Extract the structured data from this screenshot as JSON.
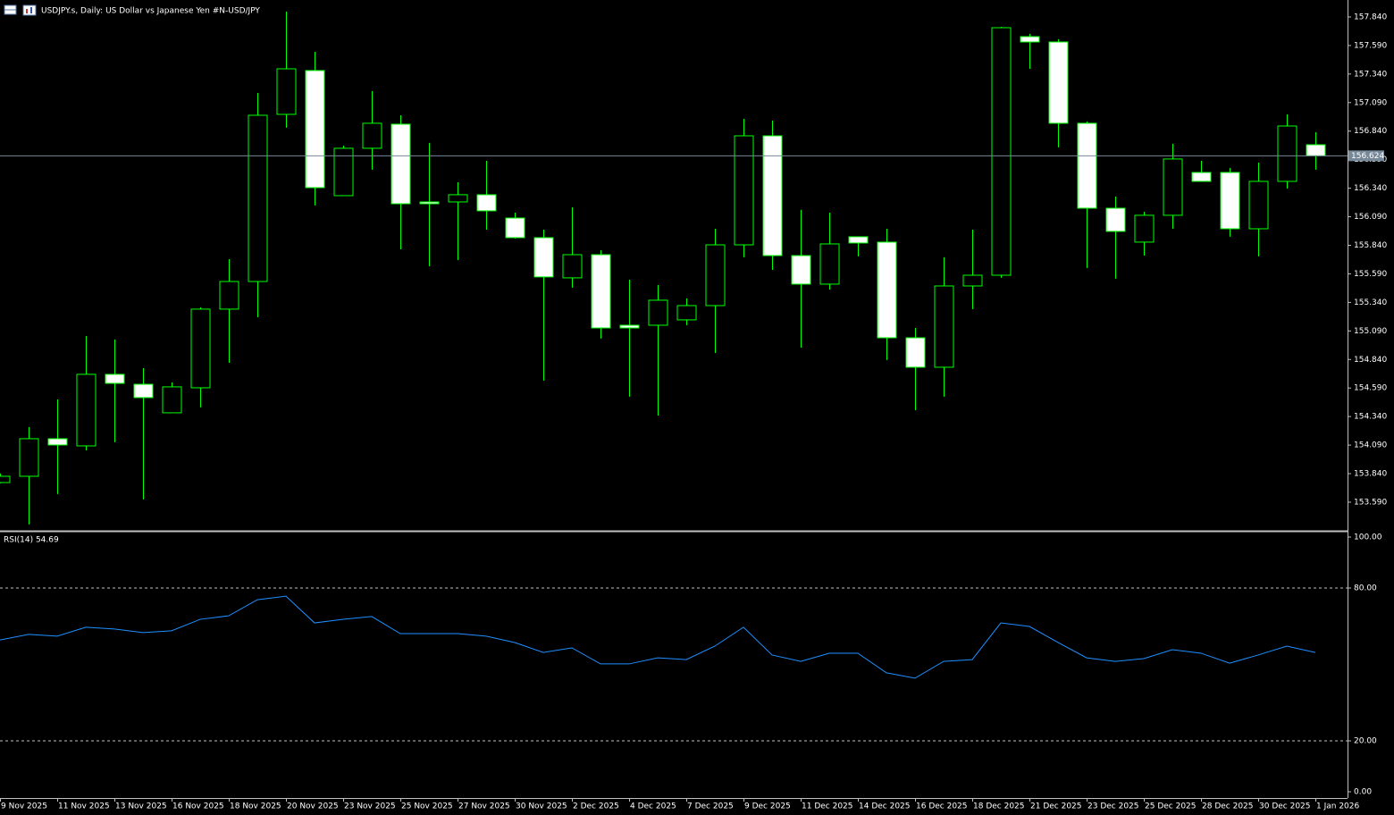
{
  "chart_data": [
    {
      "type": "candlestick",
      "title": "USDJPY.s, Daily:  US Dollar vs  Japanese Yen #N-USD/JPY",
      "categories": [
        "9 Nov 2025",
        null,
        "11 Nov 2025",
        null,
        "13 Nov 2025",
        null,
        "16 Nov 2025",
        null,
        "18 Nov 2025",
        null,
        "20 Nov 2025",
        null,
        "23 Nov 2025",
        null,
        "25 Nov 2025",
        null,
        "27 Nov 2025",
        null,
        "30 Nov 2025",
        null,
        "2 Dec 2025",
        null,
        "4 Dec 2025",
        null,
        "7 Dec 2025",
        null,
        "9 Dec 2025",
        null,
        "11 Dec 2025",
        null,
        "14 Dec 2025",
        null,
        "16 Dec 2025",
        null,
        "18 Dec 2025",
        null,
        "21 Dec 2025",
        null,
        "23 Dec 2025",
        null,
        "25 Dec 2025",
        null,
        "28 Dec 2025",
        null,
        "30 Dec 2025",
        null,
        "1 Jan 2026"
      ],
      "open": [
        153.762,
        153.817,
        154.146,
        154.083,
        154.71,
        154.623,
        154.373,
        154.592,
        155.281,
        155.523,
        156.987,
        157.371,
        156.275,
        156.69,
        156.901,
        156.22,
        156.22,
        156.283,
        156.079,
        155.907,
        155.555,
        155.758,
        155.14,
        155.14,
        155.187,
        155.312,
        155.844,
        156.799,
        155.75,
        155.5,
        155.915,
        155.868,
        155.03,
        154.772,
        155.484,
        155.578,
        157.668,
        157.621,
        156.909,
        156.165,
        155.868,
        156.103,
        156.478,
        156.478,
        155.985,
        156.4,
        156.721
      ],
      "high": [
        153.841,
        154.248,
        154.49,
        155.046,
        155.015,
        154.764,
        154.639,
        155.297,
        155.719,
        157.175,
        157.887,
        157.535,
        156.713,
        157.191,
        156.979,
        156.737,
        156.392,
        156.58,
        156.126,
        155.977,
        156.173,
        155.797,
        155.539,
        155.492,
        155.375,
        155.985,
        156.948,
        156.932,
        156.15,
        156.126,
        155.915,
        155.985,
        155.116,
        155.735,
        155.977,
        157.754,
        157.692,
        157.645,
        156.925,
        156.267,
        156.134,
        156.729,
        156.58,
        156.518,
        156.564,
        156.987,
        156.831
      ],
      "low": [
        153.755,
        153.395,
        153.661,
        154.044,
        154.115,
        153.614,
        154.373,
        154.42,
        154.811,
        155.21,
        156.87,
        156.189,
        156.275,
        156.502,
        155.805,
        155.657,
        155.711,
        155.977,
        155.899,
        154.655,
        155.469,
        155.023,
        154.514,
        154.349,
        155.14,
        154.897,
        155.735,
        155.625,
        154.944,
        155.453,
        155.743,
        154.835,
        154.396,
        154.514,
        155.281,
        155.555,
        157.386,
        156.698,
        155.641,
        155.547,
        155.75,
        155.985,
        156.4,
        155.915,
        155.743,
        156.337,
        156.502
      ],
      "close": [
        153.817,
        154.146,
        154.091,
        154.71,
        154.631,
        154.506,
        154.6,
        155.281,
        155.523,
        156.979,
        157.386,
        156.345,
        156.69,
        156.909,
        156.204,
        156.204,
        156.283,
        156.142,
        155.907,
        155.563,
        155.758,
        155.116,
        155.116,
        155.359,
        155.312,
        155.844,
        156.799,
        155.75,
        155.5,
        155.852,
        155.86,
        155.03,
        154.772,
        155.484,
        155.578,
        157.746,
        157.621,
        156.909,
        156.165,
        155.962,
        156.103,
        156.596,
        156.4,
        155.985,
        156.4,
        156.885,
        156.624
      ],
      "outline_color": "#00ff00",
      "up_fill": "#000000",
      "down_fill": "#ffffff",
      "current_price": {
        "value": 156.624,
        "label": "156.624"
      },
      "current_price_color": "#778899",
      "ylim": [
        153.347,
        157.973
      ],
      "yticks": [
        {
          "value": 157.84,
          "label": "157.840"
        },
        {
          "value": 157.59,
          "label": "157.590"
        },
        {
          "value": 157.34,
          "label": "157.340"
        },
        {
          "value": 157.09,
          "label": "157.090"
        },
        {
          "value": 156.84,
          "label": "156.840"
        },
        {
          "value": 156.59,
          "label": "156.590"
        },
        {
          "value": 156.34,
          "label": "156.340"
        },
        {
          "value": 156.09,
          "label": "156.090"
        },
        {
          "value": 155.84,
          "label": "155.840"
        },
        {
          "value": 155.59,
          "label": "155.590"
        },
        {
          "value": 155.34,
          "label": "155.340"
        },
        {
          "value": 155.09,
          "label": "155.090"
        },
        {
          "value": 154.84,
          "label": "154.840"
        },
        {
          "value": 154.59,
          "label": "154.590"
        },
        {
          "value": 154.34,
          "label": "154.340"
        },
        {
          "value": 154.09,
          "label": "154.090"
        },
        {
          "value": 153.84,
          "label": "153.840"
        },
        {
          "value": 153.59,
          "label": "153.590"
        }
      ],
      "grid": false
    },
    {
      "type": "line",
      "title": "RSI(14) 54.69",
      "values": [
        59.6,
        61.8,
        61.1,
        64.6,
        63.9,
        62.5,
        63.2,
        67.7,
        69.1,
        75.4,
        76.8,
        66.3,
        67.7,
        68.8,
        62.1,
        62.1,
        62.1,
        61.1,
        58.6,
        54.7,
        56.5,
        50.2,
        50.2,
        52.6,
        51.9,
        57.2,
        64.6,
        53.7,
        51.2,
        54.4,
        54.4,
        46.7,
        44.6,
        51.2,
        51.9,
        66.3,
        64.9,
        58.6,
        52.6,
        51.2,
        52.3,
        55.8,
        54.4,
        50.5,
        53.7,
        57.2,
        54.69
      ],
      "color": "#1e90ff",
      "ylim": [
        0,
        100
      ],
      "yticks": [
        {
          "value": 100,
          "label": "100.00"
        },
        {
          "value": 80,
          "label": "80.00"
        },
        {
          "value": 20,
          "label": "20.00"
        },
        {
          "value": 0,
          "label": "0.00"
        }
      ]
    }
  ]
}
